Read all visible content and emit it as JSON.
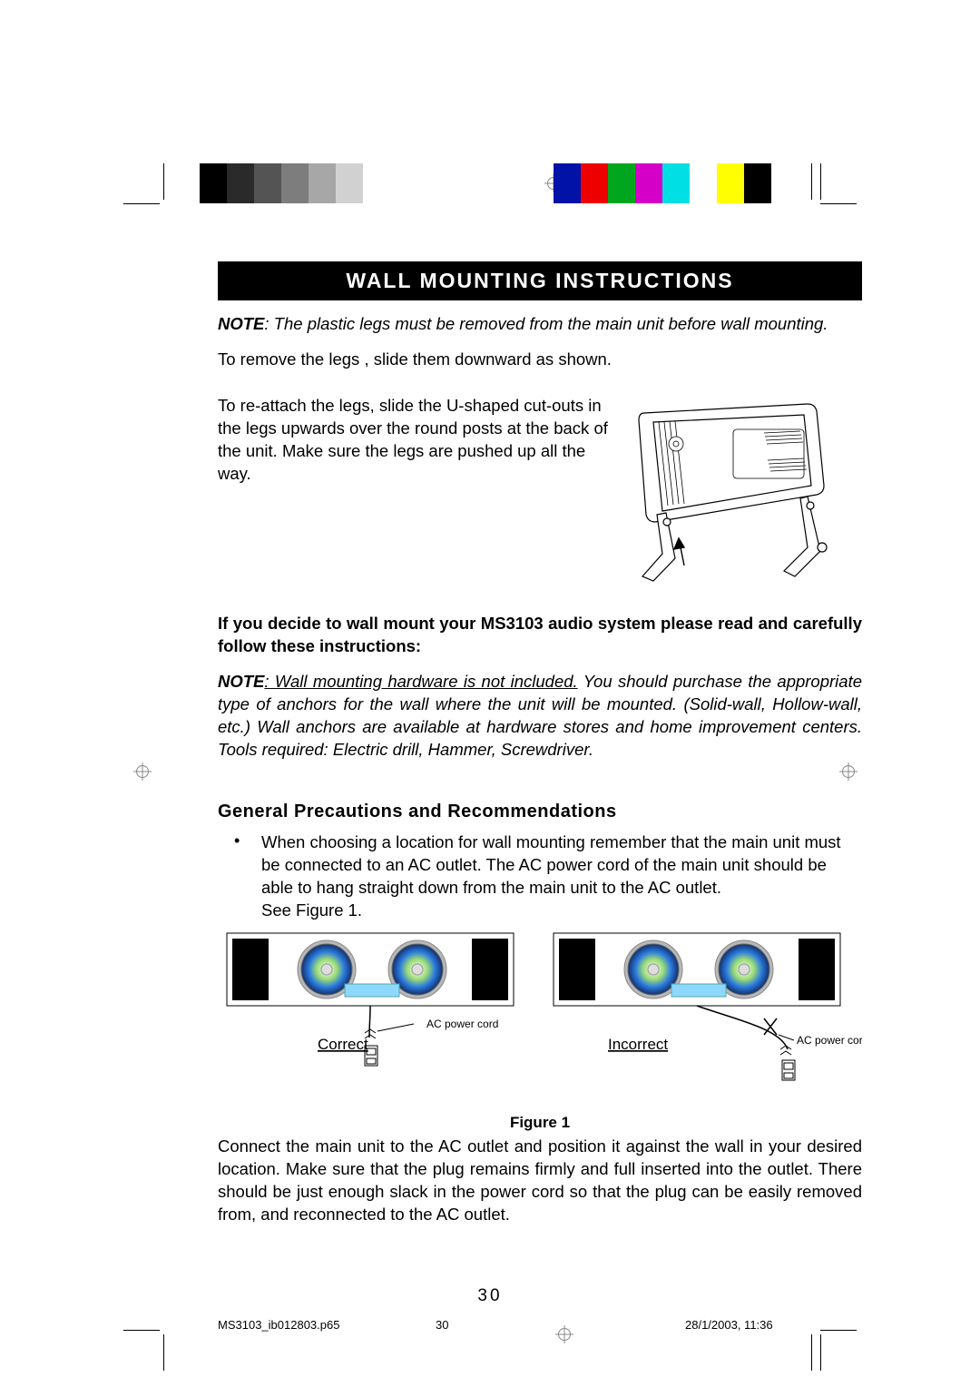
{
  "colorbar_left": [
    "#000000",
    "#2a2a2a",
    "#545454",
    "#7d7d7d",
    "#a7a7a7",
    "#d1d1d1",
    "#ffffff"
  ],
  "colorbar_right": [
    "#0012a8",
    "#ee0000",
    "#00a61d",
    "#d400c8",
    "#00dfe3",
    "#ffffff",
    "#ffff00",
    "#000000"
  ],
  "title": "WALL MOUNTING INSTRUCTIONS",
  "note1_lead": "NOTE",
  "note1_body": ": The plastic legs must be removed from the main unit before wall mounting.",
  "p1": "To remove the legs , slide them downward as shown.",
  "p2": "To re-attach the legs, slide the U-shaped cut-outs in the legs upwards over the round posts at the back of the unit. Make sure the legs are pushed up all the way.",
  "p3": "If you decide to wall mount your MS3103 audio system please read and carefully follow these instructions:",
  "note2_lead": "NOTE",
  "note2_underlined": ": Wall mounting hardware is not included.",
  "note2_rest": " You should purchase the appropriate type of anchors for the wall where the unit will be mounted. (Solid-wall, Hollow-wall, etc.) Wall anchors are available at hardware stores and home improvement centers. Tools required: Electric drill, Hammer, Screwdriver.",
  "subhead": "General Precautions and Recommendations",
  "bullet": "When choosing a location for wall mounting remember that the main unit must be connected to an AC outlet. The AC power cord of the main unit should be able to hang straight down from the main unit to the AC outlet.",
  "see_fig": "See Figure 1.",
  "fig1": {
    "label": "Figure 1",
    "correct": "Correct",
    "incorrect": "Incorrect",
    "ac_label": "AC power cord"
  },
  "p4": "Connect the main unit to the AC outlet and position it against the wall in your desired location. Make sure that the plug remains firmly and full inserted into the outlet. There should be just enough slack in the power cord so that the plug can be easily removed from, and reconnected to the AC outlet.",
  "page_number": "30",
  "footer": {
    "file": "MS3103_ib012803.p65",
    "page": "30",
    "date": "28/1/2003, 11:36"
  },
  "unit_svg": {
    "stroke": "#000000",
    "fill": "#ffffff"
  }
}
